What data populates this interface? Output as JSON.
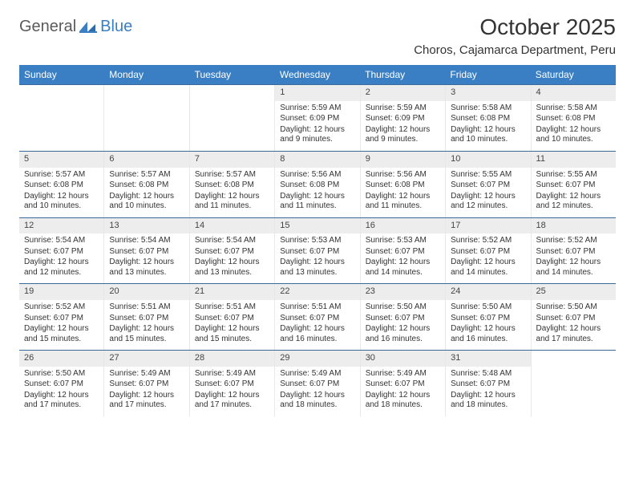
{
  "logo": {
    "text1": "General",
    "text2": "Blue"
  },
  "title": "October 2025",
  "location": "Choros, Cajamarca Department, Peru",
  "colors": {
    "header_bg": "#3a7fc4",
    "header_text": "#ffffff",
    "daynum_bg": "#ededed",
    "row_border": "#3a6a9a",
    "text": "#333333",
    "logo_gray": "#5a5a5a",
    "logo_blue": "#3a7fc4"
  },
  "day_headers": [
    "Sunday",
    "Monday",
    "Tuesday",
    "Wednesday",
    "Thursday",
    "Friday",
    "Saturday"
  ],
  "weeks": [
    [
      {
        "n": "",
        "sr": "",
        "ss": "",
        "dl": ""
      },
      {
        "n": "",
        "sr": "",
        "ss": "",
        "dl": ""
      },
      {
        "n": "",
        "sr": "",
        "ss": "",
        "dl": ""
      },
      {
        "n": "1",
        "sr": "Sunrise: 5:59 AM",
        "ss": "Sunset: 6:09 PM",
        "dl": "Daylight: 12 hours and 9 minutes."
      },
      {
        "n": "2",
        "sr": "Sunrise: 5:59 AM",
        "ss": "Sunset: 6:09 PM",
        "dl": "Daylight: 12 hours and 9 minutes."
      },
      {
        "n": "3",
        "sr": "Sunrise: 5:58 AM",
        "ss": "Sunset: 6:08 PM",
        "dl": "Daylight: 12 hours and 10 minutes."
      },
      {
        "n": "4",
        "sr": "Sunrise: 5:58 AM",
        "ss": "Sunset: 6:08 PM",
        "dl": "Daylight: 12 hours and 10 minutes."
      }
    ],
    [
      {
        "n": "5",
        "sr": "Sunrise: 5:57 AM",
        "ss": "Sunset: 6:08 PM",
        "dl": "Daylight: 12 hours and 10 minutes."
      },
      {
        "n": "6",
        "sr": "Sunrise: 5:57 AM",
        "ss": "Sunset: 6:08 PM",
        "dl": "Daylight: 12 hours and 10 minutes."
      },
      {
        "n": "7",
        "sr": "Sunrise: 5:57 AM",
        "ss": "Sunset: 6:08 PM",
        "dl": "Daylight: 12 hours and 11 minutes."
      },
      {
        "n": "8",
        "sr": "Sunrise: 5:56 AM",
        "ss": "Sunset: 6:08 PM",
        "dl": "Daylight: 12 hours and 11 minutes."
      },
      {
        "n": "9",
        "sr": "Sunrise: 5:56 AM",
        "ss": "Sunset: 6:08 PM",
        "dl": "Daylight: 12 hours and 11 minutes."
      },
      {
        "n": "10",
        "sr": "Sunrise: 5:55 AM",
        "ss": "Sunset: 6:07 PM",
        "dl": "Daylight: 12 hours and 12 minutes."
      },
      {
        "n": "11",
        "sr": "Sunrise: 5:55 AM",
        "ss": "Sunset: 6:07 PM",
        "dl": "Daylight: 12 hours and 12 minutes."
      }
    ],
    [
      {
        "n": "12",
        "sr": "Sunrise: 5:54 AM",
        "ss": "Sunset: 6:07 PM",
        "dl": "Daylight: 12 hours and 12 minutes."
      },
      {
        "n": "13",
        "sr": "Sunrise: 5:54 AM",
        "ss": "Sunset: 6:07 PM",
        "dl": "Daylight: 12 hours and 13 minutes."
      },
      {
        "n": "14",
        "sr": "Sunrise: 5:54 AM",
        "ss": "Sunset: 6:07 PM",
        "dl": "Daylight: 12 hours and 13 minutes."
      },
      {
        "n": "15",
        "sr": "Sunrise: 5:53 AM",
        "ss": "Sunset: 6:07 PM",
        "dl": "Daylight: 12 hours and 13 minutes."
      },
      {
        "n": "16",
        "sr": "Sunrise: 5:53 AM",
        "ss": "Sunset: 6:07 PM",
        "dl": "Daylight: 12 hours and 14 minutes."
      },
      {
        "n": "17",
        "sr": "Sunrise: 5:52 AM",
        "ss": "Sunset: 6:07 PM",
        "dl": "Daylight: 12 hours and 14 minutes."
      },
      {
        "n": "18",
        "sr": "Sunrise: 5:52 AM",
        "ss": "Sunset: 6:07 PM",
        "dl": "Daylight: 12 hours and 14 minutes."
      }
    ],
    [
      {
        "n": "19",
        "sr": "Sunrise: 5:52 AM",
        "ss": "Sunset: 6:07 PM",
        "dl": "Daylight: 12 hours and 15 minutes."
      },
      {
        "n": "20",
        "sr": "Sunrise: 5:51 AM",
        "ss": "Sunset: 6:07 PM",
        "dl": "Daylight: 12 hours and 15 minutes."
      },
      {
        "n": "21",
        "sr": "Sunrise: 5:51 AM",
        "ss": "Sunset: 6:07 PM",
        "dl": "Daylight: 12 hours and 15 minutes."
      },
      {
        "n": "22",
        "sr": "Sunrise: 5:51 AM",
        "ss": "Sunset: 6:07 PM",
        "dl": "Daylight: 12 hours and 16 minutes."
      },
      {
        "n": "23",
        "sr": "Sunrise: 5:50 AM",
        "ss": "Sunset: 6:07 PM",
        "dl": "Daylight: 12 hours and 16 minutes."
      },
      {
        "n": "24",
        "sr": "Sunrise: 5:50 AM",
        "ss": "Sunset: 6:07 PM",
        "dl": "Daylight: 12 hours and 16 minutes."
      },
      {
        "n": "25",
        "sr": "Sunrise: 5:50 AM",
        "ss": "Sunset: 6:07 PM",
        "dl": "Daylight: 12 hours and 17 minutes."
      }
    ],
    [
      {
        "n": "26",
        "sr": "Sunrise: 5:50 AM",
        "ss": "Sunset: 6:07 PM",
        "dl": "Daylight: 12 hours and 17 minutes."
      },
      {
        "n": "27",
        "sr": "Sunrise: 5:49 AM",
        "ss": "Sunset: 6:07 PM",
        "dl": "Daylight: 12 hours and 17 minutes."
      },
      {
        "n": "28",
        "sr": "Sunrise: 5:49 AM",
        "ss": "Sunset: 6:07 PM",
        "dl": "Daylight: 12 hours and 17 minutes."
      },
      {
        "n": "29",
        "sr": "Sunrise: 5:49 AM",
        "ss": "Sunset: 6:07 PM",
        "dl": "Daylight: 12 hours and 18 minutes."
      },
      {
        "n": "30",
        "sr": "Sunrise: 5:49 AM",
        "ss": "Sunset: 6:07 PM",
        "dl": "Daylight: 12 hours and 18 minutes."
      },
      {
        "n": "31",
        "sr": "Sunrise: 5:48 AM",
        "ss": "Sunset: 6:07 PM",
        "dl": "Daylight: 12 hours and 18 minutes."
      },
      {
        "n": "",
        "sr": "",
        "ss": "",
        "dl": ""
      }
    ]
  ]
}
